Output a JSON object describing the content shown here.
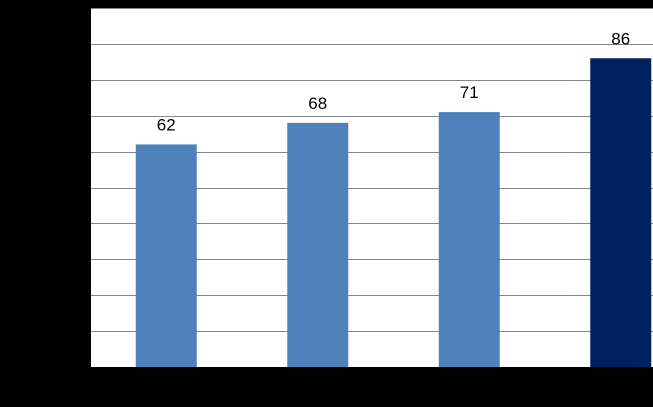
{
  "chart_data": {
    "type": "bar",
    "categories": [
      "",
      "",
      "",
      ""
    ],
    "values": [
      62,
      68,
      71,
      86
    ],
    "data_labels": [
      "62",
      "68",
      "71",
      "86"
    ],
    "title": "",
    "xlabel": "",
    "ylabel": "",
    "ylim": [
      0,
      100
    ],
    "grid": true,
    "legend": "none",
    "colors": {
      "bar": "#4f81bd",
      "highlight_bar": "#002060",
      "plot_background": "#ffffff",
      "page_background": "#000000",
      "gridline": "#868686",
      "axis": "#000000"
    },
    "highlight_index": 3
  }
}
